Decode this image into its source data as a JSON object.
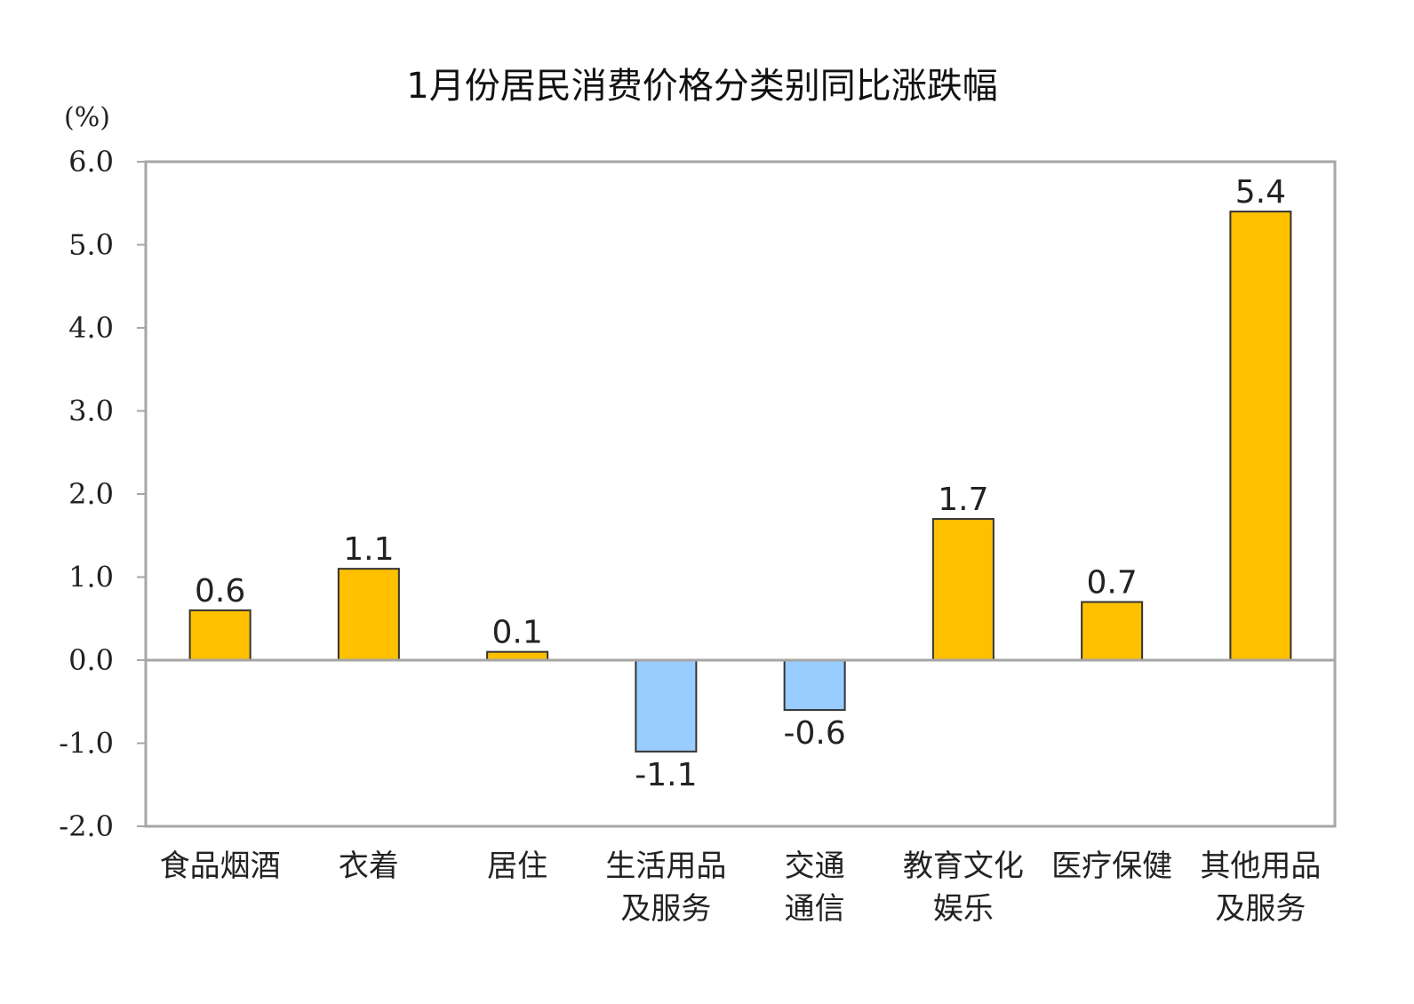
{
  "chart_data": {
    "type": "bar",
    "title": "1月份居民消费价格分类别同比涨跌幅",
    "unit_label": "(%)",
    "categories": [
      [
        "食品烟酒"
      ],
      [
        "衣着"
      ],
      [
        "居住"
      ],
      [
        "生活用品",
        "及服务"
      ],
      [
        "交通",
        "通信"
      ],
      [
        "教育文化",
        "娱乐"
      ],
      [
        "医疗保健"
      ],
      [
        "其他用品",
        "及服务"
      ]
    ],
    "values": [
      0.6,
      1.1,
      0.1,
      -1.1,
      -0.6,
      1.7,
      0.7,
      5.4
    ],
    "value_labels": [
      "0.6",
      "1.1",
      "0.1",
      "-1.1",
      "-0.6",
      "1.7",
      "0.7",
      "5.4"
    ],
    "ylim": [
      -2.0,
      6.0
    ],
    "yticks": [
      "6.0",
      "5.0",
      "4.0",
      "3.0",
      "2.0",
      "1.0",
      "0.0",
      "-1.0",
      "-2.0"
    ],
    "ytick_values": [
      6,
      5,
      4,
      3,
      2,
      1,
      0,
      -1,
      -2
    ],
    "grid": false,
    "colors": {
      "positive": "#FFC000",
      "negative": "#99CCFF",
      "frame": "#A6A6A6",
      "bar_border": "#333333"
    }
  }
}
